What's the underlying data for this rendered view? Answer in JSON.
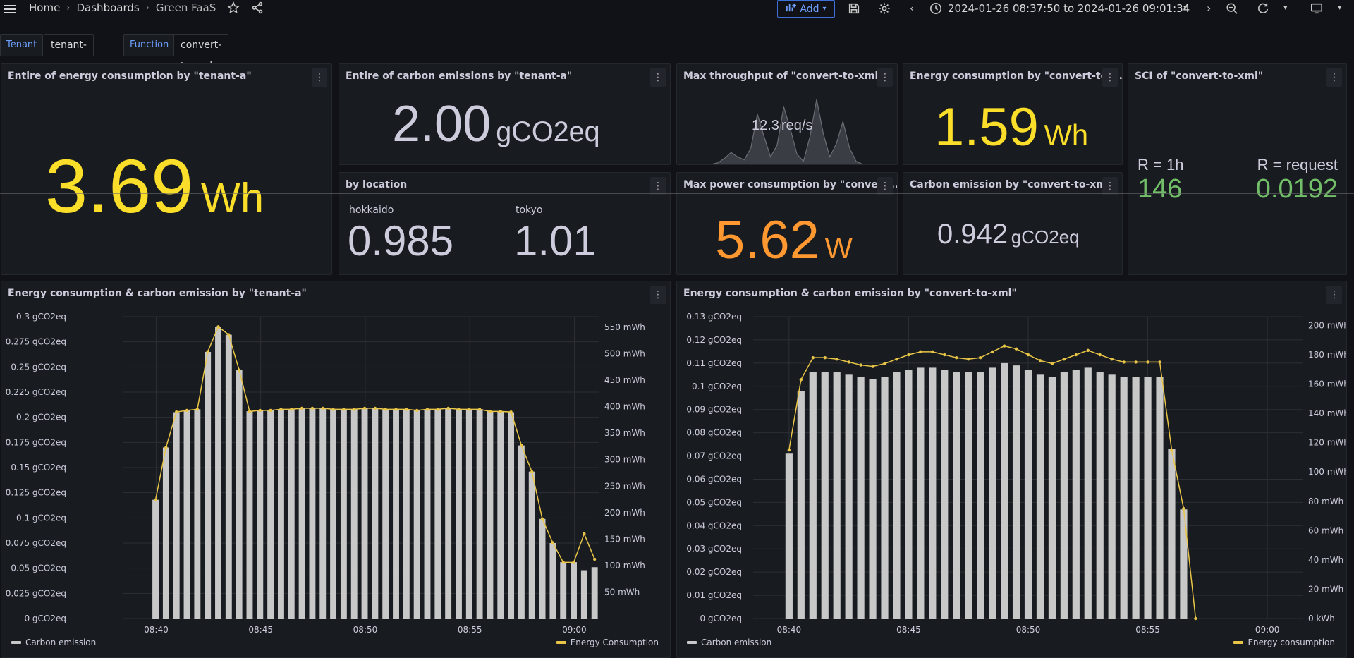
{
  "topbar": {
    "breadcrumb": [
      "Home",
      "Dashboards",
      "Green FaaS"
    ],
    "add_label": "Add",
    "time_range": "2024-01-26 08:37:50 to 2024-01-26 09:01:34"
  },
  "variables": {
    "tenant_label": "Tenant",
    "tenant_value": "tenant-a",
    "function_label": "Function",
    "function_value": "convert-to-xml"
  },
  "panels": {
    "tenant_energy": {
      "title": "Entire of energy consumption by \"tenant-a\"",
      "value": "3.69",
      "unit": "Wh"
    },
    "tenant_carbon": {
      "title": "Entire of carbon emissions by \"tenant-a\"",
      "value": "2.00",
      "unit": "gCO2eq"
    },
    "by_location": {
      "title": "by location",
      "locations": [
        {
          "name": "hokkaido",
          "value": "0.985"
        },
        {
          "name": "tokyo",
          "value": "1.01"
        }
      ]
    },
    "max_throughput": {
      "title": "Max throughput of \"convert-to-xml\"",
      "value": "12.3",
      "unit": "req/s"
    },
    "max_power": {
      "title": "Max power consumption by \"convert...",
      "value": "5.62",
      "unit": "W"
    },
    "fn_energy": {
      "title": "Energy consumption by \"convert-to-...",
      "value": "1.59",
      "unit": "Wh"
    },
    "fn_carbon": {
      "title": "Carbon emission by \"convert-to-xml\"",
      "value": "0.942",
      "unit": "gCO2eq"
    },
    "sci": {
      "title": "SCI of \"convert-to-xml\"",
      "items": [
        {
          "label": "R = 1h",
          "value": "146"
        },
        {
          "label": "R = request",
          "value": "0.0192"
        }
      ]
    }
  },
  "colors": {
    "yellow": "#fade2a",
    "orange": "#ff9830",
    "green": "#73bf69",
    "gray_text": "#ccccdc",
    "bar": "#c8c8c8",
    "line": "#e8c547"
  },
  "chart_data": [
    {
      "type": "bar",
      "title": "Energy consumption & carbon emission by \"tenant-a\"",
      "x_ticks": [
        "08:40",
        "08:45",
        "08:50",
        "08:55",
        "09:00"
      ],
      "y_left_ticks": [
        "0 gCO2eq",
        "0.025 gCO2eq",
        "0.05 gCO2eq",
        "0.075 gCO2eq",
        "0.1 gCO2eq",
        "0.125 gCO2eq",
        "0.15 gCO2eq",
        "0.175 gCO2eq",
        "0.2 gCO2eq",
        "0.225 gCO2eq",
        "0.25 gCO2eq",
        "0.275 gCO2eq",
        "0.3 gCO2eq"
      ],
      "y_right_ticks": [
        "50 mWh",
        "100 mWh",
        "150 mWh",
        "200 mWh",
        "250 mWh",
        "300 mWh",
        "350 mWh",
        "400 mWh",
        "450 mWh",
        "500 mWh",
        "550 mWh"
      ],
      "y_left_range": [
        0,
        0.3
      ],
      "y_right_range": [
        0,
        570
      ],
      "x_range_minutes": [
        38.4,
        61.2
      ],
      "bar_width_minutes": 0.3,
      "start_minute": 39.97,
      "step_minutes": 0.5,
      "series": [
        {
          "name": "Carbon emission",
          "axis": "left",
          "kind": "bar",
          "values": [
            0.118,
            0.17,
            0.205,
            0.207,
            0.208,
            0.265,
            0.29,
            0.282,
            0.247,
            0.206,
            0.207,
            0.207,
            0.208,
            0.208,
            0.209,
            0.209,
            0.209,
            0.208,
            0.208,
            0.208,
            0.209,
            0.209,
            0.208,
            0.208,
            0.208,
            0.207,
            0.208,
            0.208,
            0.209,
            0.208,
            0.208,
            0.208,
            0.206,
            0.206,
            0.205,
            0.172,
            0.146,
            0.099,
            0.075,
            0.056,
            0.056,
            0.048,
            0.051
          ]
        },
        {
          "name": "Energy Consumption",
          "axis": "right",
          "kind": "line",
          "values": [
            224,
            323,
            390,
            393,
            395,
            504,
            551,
            536,
            469,
            391,
            393,
            393,
            395,
            395,
            397,
            397,
            397,
            395,
            395,
            395,
            397,
            397,
            395,
            395,
            395,
            393,
            395,
            395,
            397,
            395,
            395,
            395,
            391,
            391,
            390,
            327,
            277,
            188,
            143,
            106,
            106,
            160,
            112
          ]
        }
      ],
      "legend": "bottom"
    },
    {
      "type": "bar",
      "title": "Energy consumption & carbon emission by \"convert-to-xml\"",
      "x_ticks": [
        "08:40",
        "08:45",
        "08:50",
        "08:55",
        "09:00"
      ],
      "y_left_ticks": [
        "0 gCO2eq",
        "0.01 gCO2eq",
        "0.02 gCO2eq",
        "0.03 gCO2eq",
        "0.04 gCO2eq",
        "0.05 gCO2eq",
        "0.06 gCO2eq",
        "0.07 gCO2eq",
        "0.08 gCO2eq",
        "0.09 gCO2eq",
        "0.1 gCO2eq",
        "0.11 gCO2eq",
        "0.12 gCO2eq",
        "0.13 gCO2eq"
      ],
      "y_right_ticks": [
        "0 kWh",
        "20 mWh",
        "40 mWh",
        "60 mWh",
        "80 mWh",
        "100 mWh",
        "120 mWh",
        "140 mWh",
        "160 mWh",
        "180 mWh",
        "200 mWh"
      ],
      "y_left_range": [
        0,
        0.13
      ],
      "y_right_range": [
        0,
        206
      ],
      "x_range_minutes": [
        38.5,
        61.5
      ],
      "bar_width_minutes": 0.3,
      "start_minute": 40.0,
      "step_minutes": 0.5,
      "series": [
        {
          "name": "Carbon emission",
          "axis": "left",
          "kind": "bar",
          "values": [
            0.071,
            0.098,
            0.106,
            0.106,
            0.106,
            0.105,
            0.104,
            0.103,
            0.104,
            0.106,
            0.107,
            0.108,
            0.108,
            0.107,
            0.106,
            0.106,
            0.106,
            0.108,
            0.11,
            0.109,
            0.107,
            0.105,
            0.104,
            0.106,
            0.107,
            0.108,
            0.106,
            0.105,
            0.104,
            0.104,
            0.104,
            0.104,
            0.073,
            0.047,
            0.0
          ]
        },
        {
          "name": "Energy consumption",
          "axis": "right",
          "kind": "line",
          "values": [
            115,
            163,
            178,
            178,
            177,
            175,
            173,
            172,
            174,
            177,
            180,
            182,
            182,
            180,
            178,
            177,
            178,
            182,
            186,
            184,
            180,
            176,
            174,
            177,
            180,
            183,
            180,
            177,
            175,
            175,
            175,
            175,
            115,
            75,
            0
          ]
        }
      ],
      "legend": "bottom"
    },
    {
      "type": "area",
      "title": "Max throughput of \"convert-to-xml\"",
      "values": [
        0,
        0.5,
        1,
        2,
        5,
        9,
        6,
        4,
        12,
        35,
        20,
        6,
        14,
        40,
        25,
        8,
        3,
        20,
        45,
        22,
        6,
        15,
        30,
        12,
        3,
        1,
        0,
        0,
        0,
        0,
        0
      ],
      "legend": "none"
    }
  ]
}
